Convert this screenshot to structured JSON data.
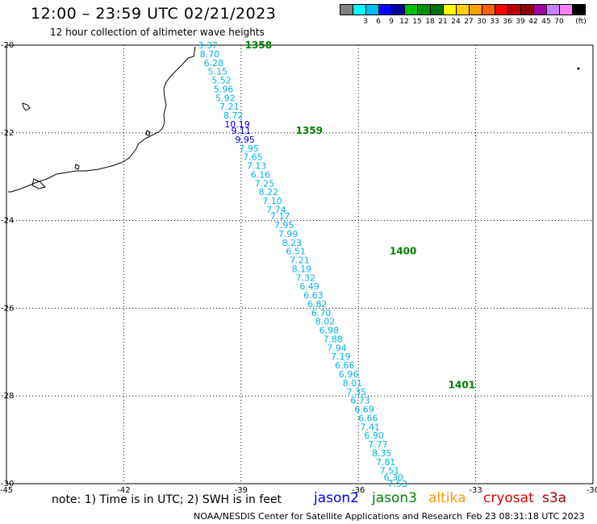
{
  "header": {
    "title": "12:00 – 23:59 UTC 02/21/2023",
    "subtitle": "12 hour collection of altimeter wave heights"
  },
  "legend": {
    "unit": "(ft)",
    "colors": [
      "#808080",
      "#00ffff",
      "#00bfff",
      "#0000ff",
      "#0000a0",
      "#00c000",
      "#009000",
      "#007000",
      "#ffff00",
      "#ffd000",
      "#ffa000",
      "#ff6000",
      "#ff0000",
      "#c00000",
      "#900000",
      "#a000a0",
      "#c080ff",
      "#ff80ff",
      "#000000"
    ],
    "labels": [
      "3",
      "6",
      "9",
      "12",
      "15",
      "18",
      "21",
      "24",
      "27",
      "30",
      "33",
      "36",
      "39",
      "42",
      "45",
      "70"
    ]
  },
  "map": {
    "lon_range": [
      -45,
      -30
    ],
    "lat_range": [
      -30,
      -20
    ],
    "lon_ticks": [
      -45,
      -42,
      -39,
      -36,
      -33,
      -30
    ],
    "lat_ticks": [
      -20,
      -22,
      -24,
      -26,
      -28,
      -30
    ],
    "track_colors": {
      "cyan": "#00b4e8",
      "blue": "#0000e0",
      "orbit": "#008000"
    }
  },
  "chart_data": {
    "type": "scatter",
    "title": "12:00 – 23:59 UTC 02/21/2023",
    "xlabel": "",
    "ylabel": "",
    "xlim": [
      -45,
      -30
    ],
    "ylim": [
      -30,
      -20
    ],
    "orbit_labels": [
      {
        "text": "1358",
        "lon": -38.9,
        "lat": -20.0
      },
      {
        "text": "1359",
        "lon": -37.6,
        "lat": -21.95
      },
      {
        "text": "1400",
        "lon": -35.2,
        "lat": -24.7
      },
      {
        "text": "1401",
        "lon": -33.7,
        "lat": -27.75
      }
    ],
    "points": [
      {
        "v": "3.37",
        "lon": -39.85,
        "lat": -20.0,
        "c": "cyan"
      },
      {
        "v": "8.70",
        "lon": -39.8,
        "lat": -20.2,
        "c": "cyan"
      },
      {
        "v": "6.28",
        "lon": -39.7,
        "lat": -20.4,
        "c": "cyan"
      },
      {
        "v": "5.15",
        "lon": -39.6,
        "lat": -20.6,
        "c": "cyan"
      },
      {
        "v": "5.52",
        "lon": -39.5,
        "lat": -20.8,
        "c": "cyan"
      },
      {
        "v": "5.96",
        "lon": -39.45,
        "lat": -21.0,
        "c": "cyan"
      },
      {
        "v": "5.92",
        "lon": -39.4,
        "lat": -21.2,
        "c": "cyan"
      },
      {
        "v": "7.21",
        "lon": -39.3,
        "lat": -21.4,
        "c": "cyan"
      },
      {
        "v": "8.72",
        "lon": -39.2,
        "lat": -21.6,
        "c": "cyan"
      },
      {
        "v": "10.19",
        "lon": -39.1,
        "lat": -21.8,
        "c": "blue"
      },
      {
        "v": "9.11",
        "lon": -39.0,
        "lat": -21.95,
        "c": "blue"
      },
      {
        "v": "9.95",
        "lon": -38.9,
        "lat": -22.15,
        "c": "blue"
      },
      {
        "v": "7.95",
        "lon": -38.8,
        "lat": -22.35,
        "c": "cyan"
      },
      {
        "v": "7.65",
        "lon": -38.7,
        "lat": -22.55,
        "c": "cyan"
      },
      {
        "v": "7.13",
        "lon": -38.6,
        "lat": -22.75,
        "c": "cyan"
      },
      {
        "v": "6.16",
        "lon": -38.5,
        "lat": -22.95,
        "c": "cyan"
      },
      {
        "v": "7.25",
        "lon": -38.4,
        "lat": -23.15,
        "c": "cyan"
      },
      {
        "v": "8.22",
        "lon": -38.3,
        "lat": -23.35,
        "c": "cyan"
      },
      {
        "v": "7.10",
        "lon": -38.2,
        "lat": -23.55,
        "c": "cyan"
      },
      {
        "v": "7.74",
        "lon": -38.1,
        "lat": -23.75,
        "c": "cyan"
      },
      {
        "v": "7.17",
        "lon": -38.0,
        "lat": -23.9,
        "c": "cyan"
      },
      {
        "v": "7.95",
        "lon": -37.9,
        "lat": -24.1,
        "c": "cyan"
      },
      {
        "v": "7.99",
        "lon": -37.8,
        "lat": -24.3,
        "c": "cyan"
      },
      {
        "v": "8.23",
        "lon": -37.7,
        "lat": -24.5,
        "c": "cyan"
      },
      {
        "v": "6.51",
        "lon": -37.6,
        "lat": -24.7,
        "c": "cyan"
      },
      {
        "v": "7.21",
        "lon": -37.5,
        "lat": -24.9,
        "c": "cyan"
      },
      {
        "v": "8.19",
        "lon": -37.45,
        "lat": -25.1,
        "c": "cyan"
      },
      {
        "v": "7.32",
        "lon": -37.35,
        "lat": -25.3,
        "c": "cyan"
      },
      {
        "v": "6.49",
        "lon": -37.25,
        "lat": -25.5,
        "c": "cyan"
      },
      {
        "v": "6.63",
        "lon": -37.15,
        "lat": -25.7,
        "c": "cyan"
      },
      {
        "v": "6.82",
        "lon": -37.05,
        "lat": -25.9,
        "c": "cyan"
      },
      {
        "v": "6.70",
        "lon": -36.95,
        "lat": -26.1,
        "c": "cyan"
      },
      {
        "v": "8.02",
        "lon": -36.85,
        "lat": -26.3,
        "c": "cyan"
      },
      {
        "v": "6.98",
        "lon": -36.75,
        "lat": -26.5,
        "c": "cyan"
      },
      {
        "v": "7.88",
        "lon": -36.65,
        "lat": -26.7,
        "c": "cyan"
      },
      {
        "v": "7.94",
        "lon": -36.55,
        "lat": -26.9,
        "c": "cyan"
      },
      {
        "v": "7.19",
        "lon": -36.45,
        "lat": -27.1,
        "c": "cyan"
      },
      {
        "v": "6.66",
        "lon": -36.35,
        "lat": -27.3,
        "c": "cyan"
      },
      {
        "v": "6.96",
        "lon": -36.25,
        "lat": -27.5,
        "c": "cyan"
      },
      {
        "v": "8.01",
        "lon": -36.15,
        "lat": -27.7,
        "c": "cyan"
      },
      {
        "v": "7.35",
        "lon": -36.05,
        "lat": -27.9,
        "c": "cyan"
      },
      {
        "v": "6.73",
        "lon": -35.95,
        "lat": -28.1,
        "c": "cyan"
      },
      {
        "v": "6.69",
        "lon": -35.85,
        "lat": -28.3,
        "c": "cyan"
      },
      {
        "v": "6.66",
        "lon": -35.75,
        "lat": -28.5,
        "c": "cyan"
      },
      {
        "v": "7.41",
        "lon": -35.7,
        "lat": -28.7,
        "c": "cyan"
      },
      {
        "v": "6.90",
        "lon": -35.6,
        "lat": -28.9,
        "c": "cyan"
      },
      {
        "v": "7.77",
        "lon": -35.5,
        "lat": -29.1,
        "c": "cyan"
      },
      {
        "v": "8.35",
        "lon": -35.4,
        "lat": -29.3,
        "c": "cyan"
      },
      {
        "v": "7.81",
        "lon": -35.3,
        "lat": -29.5,
        "c": "cyan"
      },
      {
        "v": "7.51",
        "lon": -35.2,
        "lat": -29.7,
        "c": "cyan"
      },
      {
        "v": "6.30",
        "lon": -35.1,
        "lat": -29.85,
        "c": "cyan"
      },
      {
        "v": "7.53",
        "lon": -35.0,
        "lat": -30.0,
        "c": "cyan"
      }
    ]
  },
  "footer": {
    "note": "note:  1) Time is in UTC; 2) SWH is in feet",
    "satellites": [
      {
        "name": "jason2",
        "color": "#0000e0"
      },
      {
        "name": "jason3",
        "color": "#008000"
      },
      {
        "name": "altika",
        "color": "#ff9900"
      },
      {
        "name": "cryosat",
        "color": "#e00000"
      },
      {
        "name": "s3a",
        "color": "#a00000"
      }
    ],
    "credit": "NOAA/NESDIS Center for Satellite Applications and Research",
    "timestamp": "Feb 23 08:31:18 UTC 2023"
  }
}
